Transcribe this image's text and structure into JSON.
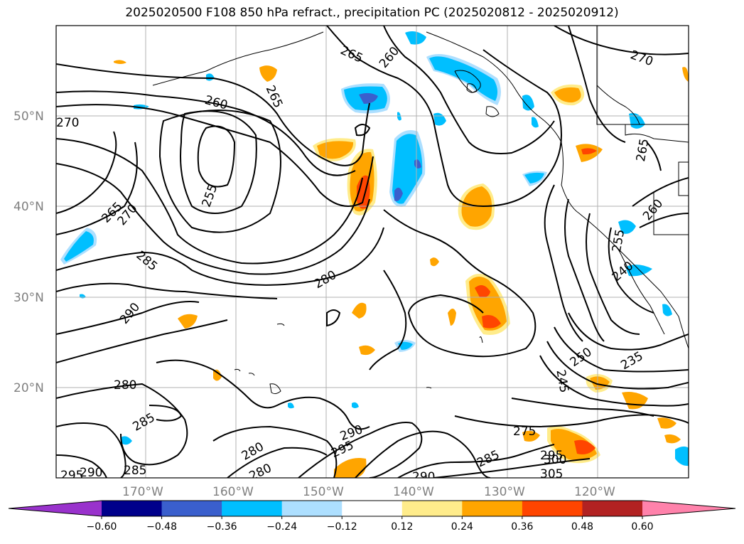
{
  "title": "2025020500 F108 850 hPa refract., precipitation PC (2025020812 - 2025020912)",
  "map": {
    "lon_labels": [
      "170°W",
      "160°W",
      "150°W",
      "140°W",
      "130°W",
      "120°W"
    ],
    "lat_labels": [
      "50°N",
      "40°N",
      "30°N",
      "20°N"
    ],
    "contour_labels": [
      {
        "text": "265"
      },
      {
        "text": "260"
      },
      {
        "text": "270"
      },
      {
        "text": "265"
      },
      {
        "text": "260"
      },
      {
        "text": "270"
      },
      {
        "text": "265"
      },
      {
        "text": "270"
      },
      {
        "text": "255"
      },
      {
        "text": "285"
      },
      {
        "text": "280"
      },
      {
        "text": "290"
      },
      {
        "text": "280"
      },
      {
        "text": "285"
      },
      {
        "text": "280"
      },
      {
        "text": "295"
      },
      {
        "text": "290"
      },
      {
        "text": "285"
      },
      {
        "text": "280"
      },
      {
        "text": "290"
      },
      {
        "text": "295"
      },
      {
        "text": "290"
      },
      {
        "text": "275"
      },
      {
        "text": "285"
      },
      {
        "text": "295"
      },
      {
        "text": "300"
      },
      {
        "text": "305"
      },
      {
        "text": "250"
      },
      {
        "text": "245"
      },
      {
        "text": "235"
      },
      {
        "text": "265"
      },
      {
        "text": "260"
      },
      {
        "text": "255"
      },
      {
        "text": "240"
      }
    ]
  },
  "colorbar": {
    "ticks": [
      "−0.60",
      "−0.48",
      "−0.36",
      "−0.24",
      "−0.12",
      "0.12",
      "0.24",
      "0.36",
      "0.48",
      "0.60"
    ],
    "colors": [
      "#9932CC",
      "#00008B",
      "#3A5FCD",
      "#00BFFF",
      "#ADDFFF",
      "#FFFFFF",
      "#FFEC8B",
      "#FFA500",
      "#FF4500",
      "#B22222",
      "#FF82AB"
    ]
  }
}
